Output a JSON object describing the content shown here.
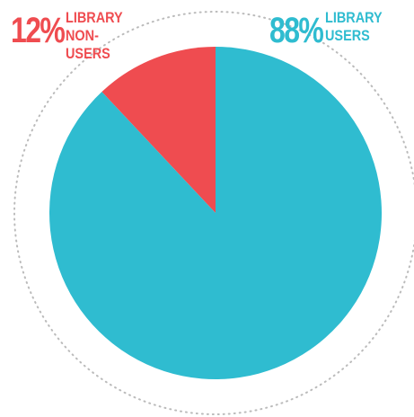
{
  "chart_data": {
    "type": "pie",
    "categories": [
      "LIBRARY NON-USERS",
      "LIBRARY USERS"
    ],
    "values": [
      12,
      88
    ],
    "value_labels": [
      "12%",
      "88%"
    ],
    "colors": [
      "#ef4c50",
      "#2fbcd0"
    ]
  }
}
